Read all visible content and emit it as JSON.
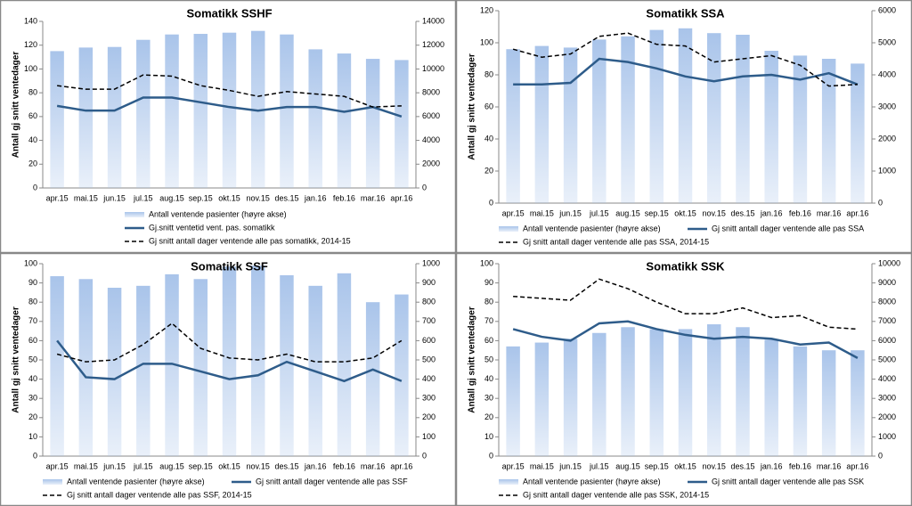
{
  "chart_data": [
    {
      "type": "bar-line",
      "title": "Somatikk SSHF",
      "y_label": "Antall gj snitt ventedager",
      "categories": [
        "apr.15",
        "mai.15",
        "jun.15",
        "jul.15",
        "aug.15",
        "sep.15",
        "okt.15",
        "nov.15",
        "des.15",
        "jan.16",
        "feb.16",
        "mar.16",
        "apr.16"
      ],
      "ylim": [
        0,
        140
      ],
      "yticks": [
        0,
        20,
        40,
        60,
        80,
        100,
        120,
        140
      ],
      "y2lim": [
        0,
        14000
      ],
      "y2ticks": [
        0,
        2000,
        4000,
        6000,
        8000,
        10000,
        12000,
        14000
      ],
      "series": [
        {
          "name": "Antall ventende pasienter (høyre akse)",
          "type": "bar",
          "axis": "y2",
          "color": "#a9c4ea",
          "values": [
            11500,
            11800,
            11850,
            12450,
            12900,
            12950,
            13050,
            13200,
            12900,
            11650,
            11300,
            10850,
            10750
          ]
        },
        {
          "name": "Gj.snitt ventetid vent. pas. somatikk",
          "type": "line",
          "color": "#2e5c8a",
          "line_style": "solid",
          "values": [
            69,
            65,
            65,
            76,
            76,
            72,
            68,
            65,
            68,
            68,
            64,
            68,
            60
          ]
        },
        {
          "name": "Gj snitt antall dager ventende alle pas somatikk, 2014-15",
          "type": "line",
          "color": "#000000",
          "line_style": "dashed",
          "values": [
            86,
            83,
            83,
            95,
            94,
            86,
            82,
            77,
            81,
            79,
            77,
            68,
            69
          ]
        }
      ]
    },
    {
      "type": "bar-line",
      "title": "Somatikk SSA",
      "y_label": "Antall gj snitt ventedager",
      "categories": [
        "apr.15",
        "mai.15",
        "jun.15",
        "jul.15",
        "aug.15",
        "sep.15",
        "okt.15",
        "nov.15",
        "des.15",
        "jan.16",
        "feb.16",
        "mar.16",
        "apr.16"
      ],
      "ylim": [
        0,
        120
      ],
      "yticks": [
        0,
        20,
        40,
        60,
        80,
        100,
        120
      ],
      "y2lim": [
        0,
        6000
      ],
      "y2ticks": [
        0,
        1000,
        2000,
        3000,
        4000,
        5000,
        6000
      ],
      "series": [
        {
          "name": "Antall ventende pasienter (høyre akse)",
          "type": "bar",
          "axis": "y2",
          "color": "#a9c4ea",
          "values": [
            4800,
            4900,
            4850,
            5100,
            5200,
            5400,
            5450,
            5300,
            5250,
            4750,
            4600,
            4500,
            4350
          ]
        },
        {
          "name": "Gj snitt antall dager ventende alle pas SSA",
          "type": "line",
          "color": "#2e5c8a",
          "line_style": "solid",
          "values": [
            74,
            74,
            75,
            90,
            88,
            84,
            79,
            76,
            79,
            80,
            77,
            81,
            74
          ]
        },
        {
          "name": "Gj snitt antall dager ventende alle pas SSA, 2014-15",
          "type": "line",
          "color": "#000000",
          "line_style": "dashed",
          "values": [
            96,
            91,
            93,
            104,
            106,
            99,
            98,
            88,
            90,
            92,
            86,
            73,
            74
          ]
        }
      ]
    },
    {
      "type": "bar-line",
      "title": "Somatikk SSF",
      "y_label": "Antall gj snitt ventedager",
      "categories": [
        "apr.15",
        "mai.15",
        "jun.15",
        "jul.15",
        "aug.15",
        "sep.15",
        "okt.15",
        "nov.15",
        "des.15",
        "jan.16",
        "feb.16",
        "mar.16",
        "apr.16"
      ],
      "ylim": [
        0,
        100
      ],
      "yticks": [
        0,
        10,
        20,
        30,
        40,
        50,
        60,
        70,
        80,
        90,
        100
      ],
      "y2lim": [
        0,
        1000
      ],
      "y2ticks": [
        0,
        100,
        200,
        300,
        400,
        500,
        600,
        700,
        800,
        900,
        1000
      ],
      "series": [
        {
          "name": "Antall ventende pasienter (høyre akse)",
          "type": "bar",
          "axis": "y2",
          "color": "#a9c4ea",
          "values": [
            935,
            920,
            875,
            885,
            945,
            920,
            985,
            990,
            940,
            885,
            950,
            800,
            840
          ]
        },
        {
          "name": "Gj snitt antall dager ventende alle pas SSF",
          "type": "line",
          "color": "#2e5c8a",
          "line_style": "solid",
          "values": [
            60,
            41,
            40,
            48,
            48,
            44,
            40,
            42,
            49,
            44,
            39,
            45,
            39
          ]
        },
        {
          "name": "Gj snitt antall dager ventende alle pas SSF, 2014-15",
          "type": "line",
          "color": "#000000",
          "line_style": "dashed",
          "values": [
            53,
            49,
            50,
            58,
            69,
            56,
            51,
            50,
            53,
            49,
            49,
            51,
            60
          ]
        }
      ]
    },
    {
      "type": "bar-line",
      "title": "Somatikk SSK",
      "y_label": "Antall gj snitt ventedager",
      "categories": [
        "apr.15",
        "mai.15",
        "jun.15",
        "jul.15",
        "aug.15",
        "sep.15",
        "okt.15",
        "nov.15",
        "des.15",
        "jan.16",
        "feb.16",
        "mar.16",
        "apr.16"
      ],
      "ylim": [
        0,
        100
      ],
      "yticks": [
        0,
        10,
        20,
        30,
        40,
        50,
        60,
        70,
        80,
        90,
        100
      ],
      "y2lim": [
        0,
        10000
      ],
      "y2ticks": [
        0,
        1000,
        2000,
        3000,
        4000,
        5000,
        6000,
        7000,
        8000,
        9000,
        10000
      ],
      "series": [
        {
          "name": "Antall ventende pasienter (høyre akse)",
          "type": "bar",
          "axis": "y2",
          "color": "#a9c4ea",
          "values": [
            5700,
            5900,
            6100,
            6400,
            6700,
            6600,
            6600,
            6850,
            6700,
            6050,
            5700,
            5500,
            5500
          ]
        },
        {
          "name": "Gj snitt antall dager ventende alle pas SSK",
          "type": "line",
          "color": "#2e5c8a",
          "line_style": "solid",
          "values": [
            66,
            62,
            60,
            69,
            70,
            66,
            63,
            61,
            62,
            61,
            58,
            59,
            51
          ]
        },
        {
          "name": "Gj snitt antall dager ventende alle pas SSK, 2014-15",
          "type": "line",
          "color": "#000000",
          "line_style": "dashed",
          "values": [
            83,
            82,
            81,
            92,
            87,
            80,
            74,
            74,
            77,
            72,
            73,
            67,
            66
          ]
        }
      ]
    }
  ]
}
